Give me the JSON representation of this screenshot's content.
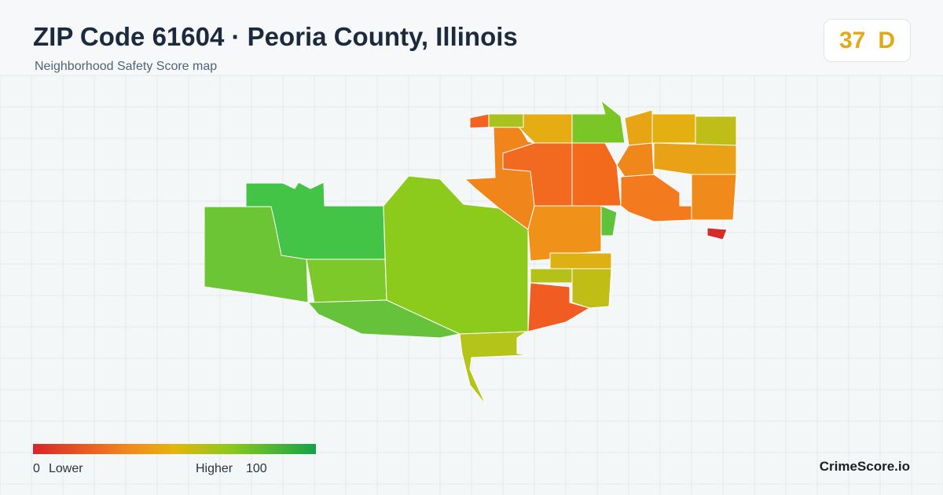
{
  "header": {
    "title": "ZIP Code 61604 · Peoria County, Illinois",
    "subtitle": "Neighborhood Safety Score map"
  },
  "score": {
    "value": "37",
    "grade": "D"
  },
  "legend": {
    "min": "0",
    "min_label": "Lower",
    "max_label": "Higher",
    "max": "100"
  },
  "brand": "CrimeScore.io"
}
